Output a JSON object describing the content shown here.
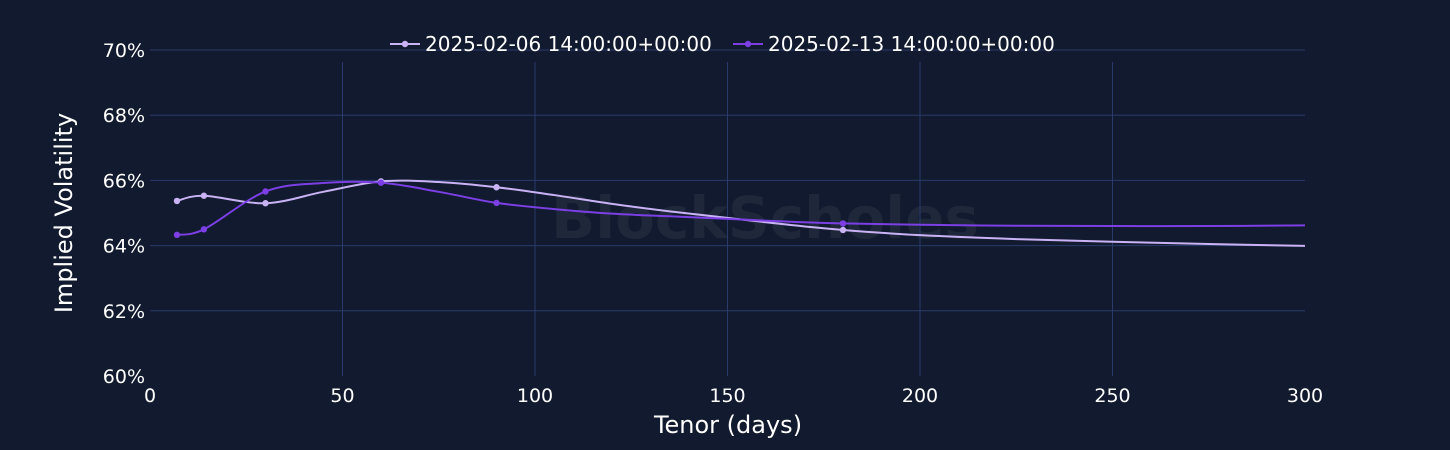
{
  "chart_data": {
    "type": "line",
    "title": "",
    "xlabel": "Tenor (days)",
    "ylabel": "Implied Volatility",
    "xlim": [
      0,
      300
    ],
    "ylim": [
      60,
      70
    ],
    "x_ticks": [
      0,
      50,
      100,
      150,
      200,
      250,
      300
    ],
    "y_ticks": [
      60,
      62,
      64,
      66,
      68,
      70
    ],
    "y_tick_labels": [
      "60%",
      "62%",
      "64%",
      "66%",
      "68%",
      "70%"
    ],
    "x_tick_labels": [
      "0",
      "50",
      "100",
      "150",
      "200",
      "250",
      "300"
    ],
    "grid": true,
    "legend_position": "top-center",
    "watermark": "BlockScholes",
    "series": [
      {
        "name": "2025-02-06 14:00:00+00:00",
        "color": "#c9b3f5",
        "marker_x": [
          7,
          14,
          30,
          60,
          90,
          180
        ],
        "marker_y": [
          65.37,
          65.53,
          65.3,
          65.97,
          65.79,
          64.48
        ],
        "x": [
          7,
          14,
          30,
          45,
          60,
          75,
          90,
          105,
          120,
          135,
          150,
          165,
          180,
          200,
          225,
          250,
          275,
          300
        ],
        "y": [
          65.37,
          65.53,
          65.3,
          65.65,
          65.97,
          65.95,
          65.79,
          65.55,
          65.28,
          65.05,
          64.85,
          64.65,
          64.48,
          64.32,
          64.2,
          64.12,
          64.05,
          63.99
        ]
      },
      {
        "name": "2025-02-13 14:00:00+00:00",
        "color": "#7b3fe4",
        "marker_x": [
          7,
          14,
          30,
          60,
          90,
          180
        ],
        "marker_y": [
          64.33,
          64.5,
          65.66,
          65.93,
          65.31,
          64.68
        ],
        "x": [
          7,
          14,
          30,
          45,
          60,
          75,
          90,
          105,
          120,
          135,
          150,
          165,
          180,
          200,
          225,
          250,
          275,
          300
        ],
        "y": [
          64.33,
          64.5,
          65.66,
          65.92,
          65.93,
          65.65,
          65.31,
          65.12,
          64.98,
          64.9,
          64.82,
          64.74,
          64.68,
          64.64,
          64.61,
          64.6,
          64.6,
          64.62
        ]
      }
    ]
  }
}
